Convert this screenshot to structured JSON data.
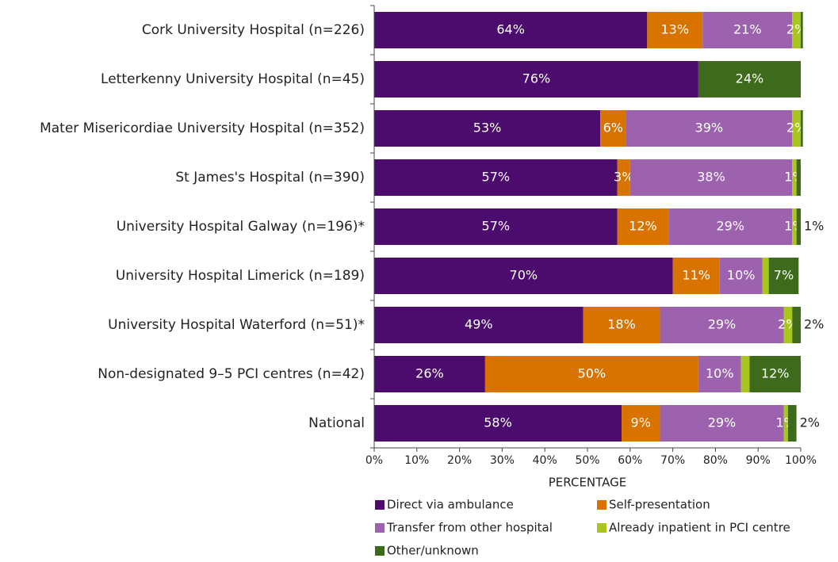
{
  "chart_data": {
    "type": "bar",
    "orientation": "horizontal",
    "stacked": true,
    "xlabel": "PERCENTAGE",
    "categories": [
      "Cork University Hospital (n=226)",
      "Letterkenny University Hospital (n=45)",
      "Mater Misericordiae University Hospital (n=352)",
      "St James's Hospital (n=390)",
      "University Hospital Galway (n=196)*",
      "University Hospital Limerick (n=189)",
      "University Hospital Waterford (n=51)*",
      "Non-designated 9–5 PCI centres (n=42)",
      "National"
    ],
    "series": [
      {
        "name": "Direct via ambulance",
        "color": "#4b0c6e",
        "values": [
          64,
          76,
          53,
          57,
          57,
          70,
          49,
          26,
          58
        ],
        "value_labels": [
          "64%",
          "76%",
          "53%",
          "57%",
          "57%",
          "70%",
          "49%",
          "26%",
          "58%"
        ]
      },
      {
        "name": "Self-presentation",
        "color": "#d97300",
        "values": [
          13,
          0,
          6,
          3,
          12,
          11,
          18,
          50,
          9
        ],
        "value_labels": [
          "13%",
          null,
          "6%",
          "3%",
          "12%",
          "11%",
          "18%",
          "50%",
          "9%"
        ]
      },
      {
        "name": "Transfer from other hospital",
        "color": "#9c62ae",
        "values": [
          21,
          0,
          39,
          38,
          29,
          10,
          29,
          10,
          29
        ],
        "value_labels": [
          "21%",
          null,
          "39%",
          "38%",
          "29%",
          "10%",
          "29%",
          "10%",
          "29%"
        ]
      },
      {
        "name": "Already inpatient in PCI centre",
        "color": "#a9c61f",
        "values": [
          2,
          0,
          2,
          1,
          1,
          1.5,
          2,
          2,
          1
        ],
        "value_labels": [
          "2%",
          null,
          "2%",
          "1%",
          "1%",
          null,
          "2%",
          null,
          "1%"
        ]
      },
      {
        "name": "Other/unknown",
        "color": "#3e6b1b",
        "values": [
          0.5,
          24,
          0.5,
          1,
          1,
          7,
          2,
          12,
          2
        ],
        "value_labels": [
          null,
          "24%",
          null,
          null,
          "1%",
          "7%",
          "2%",
          "12%",
          "2%"
        ]
      }
    ],
    "xlim": [
      0,
      100
    ],
    "xticks": [
      {
        "value": 0,
        "label": "0%"
      },
      {
        "value": 10,
        "label": "10%"
      },
      {
        "value": 20,
        "label": "20%"
      },
      {
        "value": 30,
        "label": "30%"
      },
      {
        "value": 40,
        "label": "40%"
      },
      {
        "value": 50,
        "label": "50%"
      },
      {
        "value": 60,
        "label": "60%"
      },
      {
        "value": 70,
        "label": "70%"
      },
      {
        "value": 80,
        "label": "80%"
      },
      {
        "value": 90,
        "label": "90%"
      },
      {
        "value": 100,
        "label": "100%"
      }
    ],
    "legend": "bottom"
  }
}
